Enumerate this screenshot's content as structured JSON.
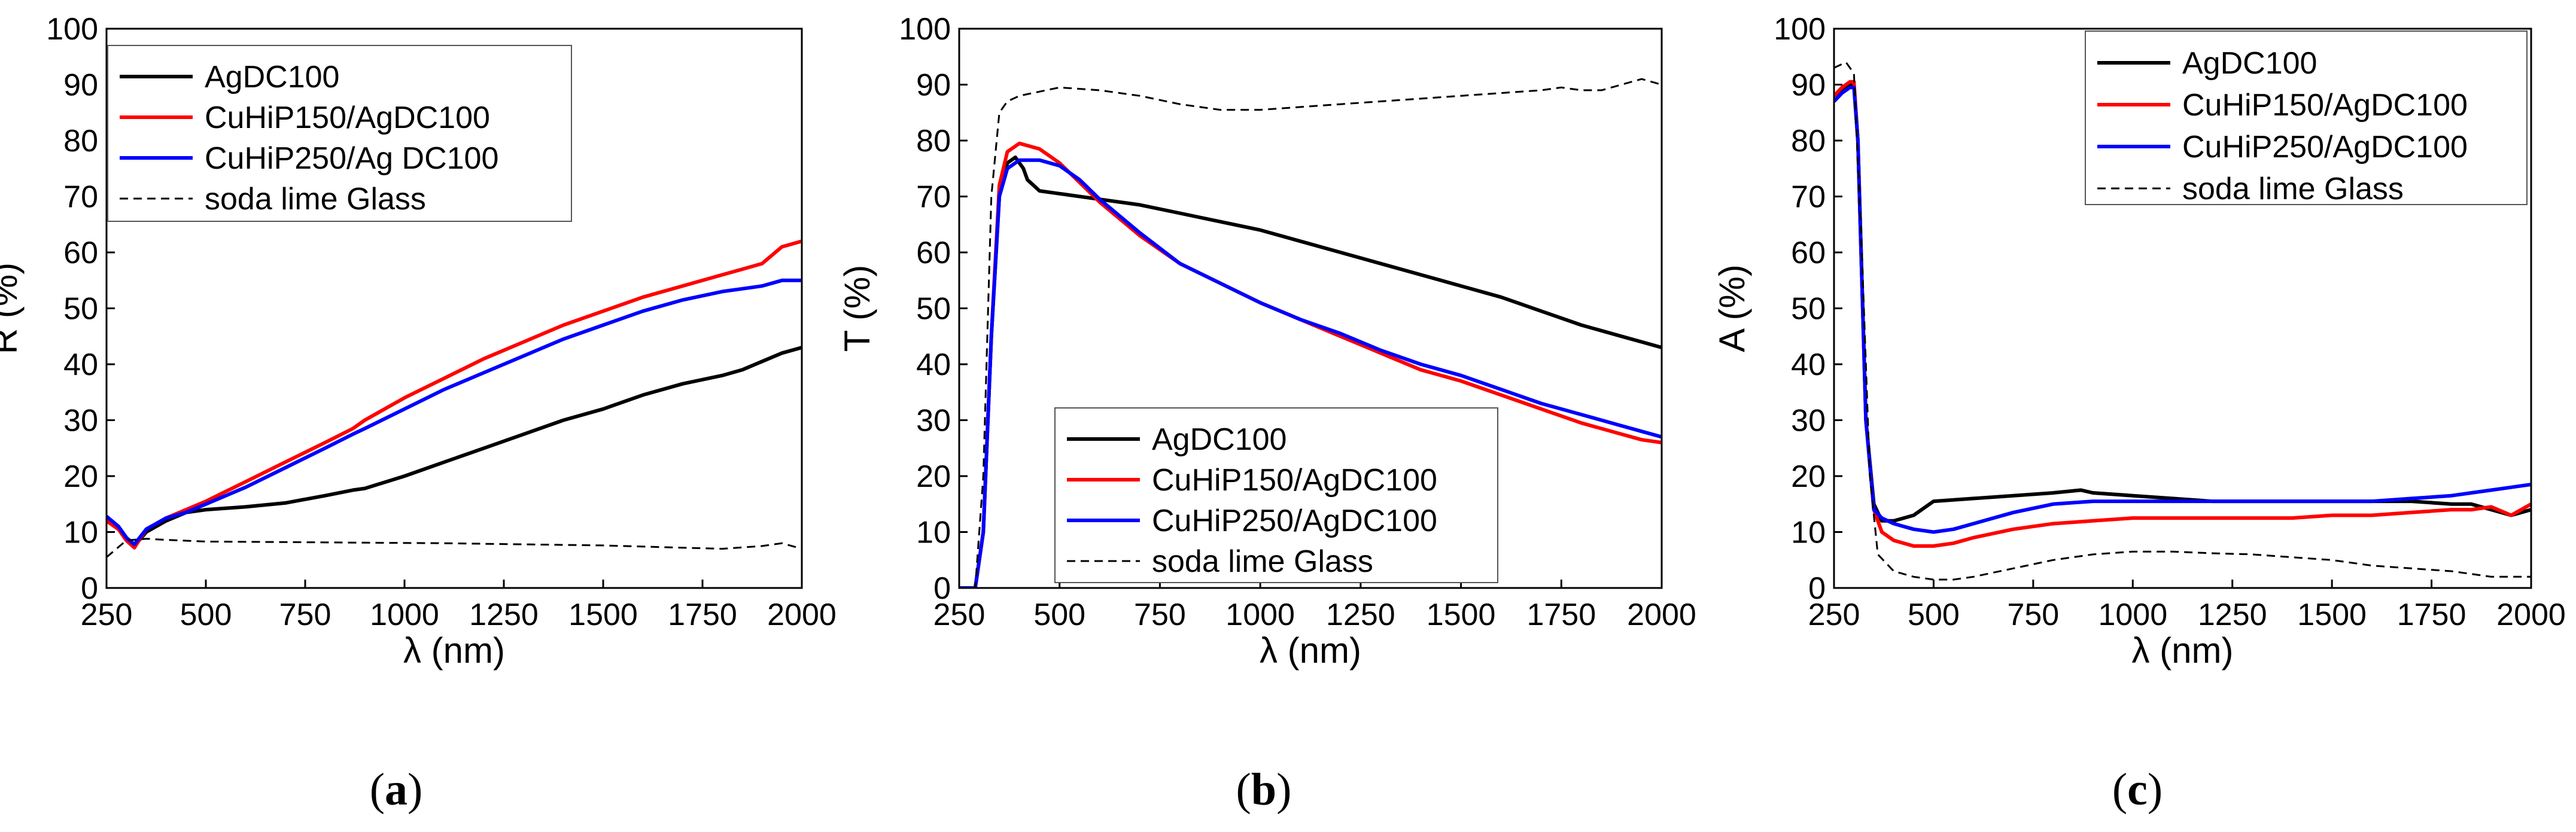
{
  "colors": {
    "black": "#000000",
    "red": "#ff0000",
    "blue": "#0000ff"
  },
  "x_ticks": [
    250,
    500,
    750,
    1000,
    1250,
    1500,
    1750,
    2000
  ],
  "y_ticks": [
    0,
    10,
    20,
    30,
    40,
    50,
    60,
    70,
    80,
    90,
    100
  ],
  "chart_data": [
    {
      "type": "line",
      "panel": "a",
      "caption": "(a)",
      "xlabel": "λ (nm)",
      "ylabel": "R (%)",
      "xlim": [
        250,
        2000
      ],
      "ylim": [
        0,
        100
      ],
      "legend_position": "top-left",
      "series": [
        {
          "name": "AgDC100",
          "color": "#000000",
          "dash": "solid",
          "x": [
            250,
            280,
            300,
            320,
            350,
            400,
            450,
            500,
            600,
            700,
            800,
            870,
            900,
            1000,
            1100,
            1200,
            1300,
            1400,
            1500,
            1600,
            1700,
            1800,
            1850,
            1900,
            1950,
            2000
          ],
          "y": [
            12.5,
            11,
            9,
            7.5,
            10,
            12,
            13.5,
            14,
            14.5,
            15.2,
            16.5,
            17.5,
            17.8,
            20,
            22.5,
            25,
            27.5,
            30,
            32,
            34.5,
            36.5,
            38,
            39,
            40.5,
            42,
            43
          ]
        },
        {
          "name": "CuHiP150/AgDC100",
          "color": "#ff0000",
          "dash": "solid",
          "x": [
            250,
            280,
            300,
            320,
            350,
            400,
            450,
            500,
            600,
            700,
            800,
            870,
            900,
            1000,
            1100,
            1200,
            1300,
            1400,
            1500,
            1600,
            1700,
            1800,
            1850,
            1900,
            1950,
            2000
          ],
          "y": [
            12,
            10.5,
            8.5,
            7.2,
            10.5,
            12.5,
            14,
            15.5,
            19,
            22.5,
            26,
            28.5,
            30,
            34,
            37.5,
            41,
            44,
            47,
            49.5,
            52,
            54,
            56,
            57,
            58,
            61,
            62
          ]
        },
        {
          "name": "CuHiP250/Ag DC100",
          "color": "#0000ff",
          "dash": "solid",
          "x": [
            250,
            280,
            300,
            320,
            350,
            400,
            450,
            500,
            600,
            700,
            800,
            870,
            900,
            1000,
            1100,
            1200,
            1300,
            1400,
            1500,
            1600,
            1700,
            1800,
            1850,
            1900,
            1950,
            2000
          ],
          "y": [
            12.8,
            11,
            9,
            7.8,
            10.5,
            12.5,
            13.5,
            15,
            18,
            21.5,
            25,
            27.5,
            28.5,
            32,
            35.5,
            38.5,
            41.5,
            44.5,
            47,
            49.5,
            51.5,
            53,
            53.5,
            54,
            55,
            55
          ]
        },
        {
          "name": "soda lime Glass",
          "color": "#000000",
          "dash": "dashed",
          "x": [
            250,
            300,
            350,
            400,
            500,
            700,
            900,
            1100,
            1300,
            1500,
            1700,
            1800,
            1900,
            1950,
            2000
          ],
          "y": [
            5.5,
            8.5,
            8.8,
            8.6,
            8.3,
            8.2,
            8.1,
            8,
            7.8,
            7.6,
            7.2,
            7,
            7.5,
            8,
            7
          ]
        }
      ]
    },
    {
      "type": "line",
      "panel": "b",
      "caption": "(b)",
      "xlabel": "λ (nm)",
      "ylabel": "T (%)",
      "xlim": [
        250,
        2000
      ],
      "ylim": [
        0,
        100
      ],
      "legend_position": "bottom-center",
      "series": [
        {
          "name": "AgDC100",
          "color": "#000000",
          "dash": "solid",
          "x": [
            250,
            290,
            310,
            330,
            350,
            370,
            390,
            410,
            420,
            450,
            500,
            600,
            700,
            800,
            900,
            1000,
            1100,
            1200,
            1300,
            1400,
            1500,
            1600,
            1700,
            1800,
            1900,
            1950,
            2000
          ],
          "y": [
            0,
            0,
            10,
            45,
            70,
            76,
            77,
            75,
            73,
            71,
            70.5,
            69.5,
            68.5,
            67,
            65.5,
            64,
            62,
            60,
            58,
            56,
            54,
            52,
            49.5,
            47,
            45,
            44,
            43
          ]
        },
        {
          "name": "CuHiP150/AgDC100",
          "color": "#ff0000",
          "dash": "solid",
          "x": [
            250,
            290,
            310,
            330,
            350,
            370,
            400,
            450,
            500,
            550,
            600,
            700,
            800,
            900,
            1000,
            1100,
            1200,
            1300,
            1400,
            1500,
            1600,
            1700,
            1800,
            1900,
            1950,
            2000
          ],
          "y": [
            0,
            0,
            10,
            45,
            72,
            78,
            79.5,
            78.5,
            76,
            72.5,
            69,
            63,
            58,
            54.5,
            51,
            48,
            45,
            42,
            39,
            37,
            34.5,
            32,
            29.5,
            27.5,
            26.5,
            26
          ]
        },
        {
          "name": "CuHiP250/AgDC100",
          "color": "#0000ff",
          "dash": "solid",
          "x": [
            250,
            290,
            310,
            330,
            350,
            370,
            400,
            450,
            500,
            550,
            600,
            700,
            800,
            900,
            1000,
            1100,
            1200,
            1300,
            1400,
            1500,
            1600,
            1700,
            1800,
            1900,
            1950,
            2000
          ],
          "y": [
            0,
            0,
            10,
            45,
            70,
            75,
            76.5,
            76.5,
            75.5,
            73,
            69.5,
            63.5,
            58,
            54.5,
            51,
            48,
            45.5,
            42.5,
            40,
            38,
            35.5,
            33,
            31,
            29,
            28,
            27
          ]
        },
        {
          "name": "soda lime Glass",
          "color": "#000000",
          "dash": "dashed",
          "x": [
            250,
            290,
            310,
            330,
            350,
            370,
            400,
            500,
            600,
            700,
            800,
            900,
            1000,
            1100,
            1200,
            1300,
            1400,
            1500,
            1600,
            1700,
            1750,
            1800,
            1850,
            1900,
            1950,
            2000
          ],
          "y": [
            0,
            0,
            20,
            70,
            85,
            87,
            88,
            89.5,
            89,
            88,
            86.5,
            85.5,
            85.5,
            86,
            86.5,
            87,
            87.5,
            88,
            88.5,
            89,
            89.5,
            89,
            89,
            90,
            91,
            90
          ]
        }
      ]
    },
    {
      "type": "line",
      "panel": "c",
      "caption": "(c)",
      "xlabel": "λ (nm)",
      "ylabel": "A (%)",
      "xlim": [
        250,
        2000
      ],
      "ylim": [
        0,
        100
      ],
      "legend_position": "top-right",
      "series": [
        {
          "name": "AgDC100",
          "color": "#000000",
          "dash": "solid",
          "x": [
            250,
            270,
            290,
            300,
            310,
            320,
            330,
            350,
            370,
            400,
            450,
            500,
            600,
            700,
            800,
            870,
            900,
            1000,
            1100,
            1200,
            1300,
            1400,
            1500,
            1600,
            1700,
            1800,
            1850,
            1900,
            1950,
            2000
          ],
          "y": [
            88,
            89,
            90,
            90,
            80,
            55,
            30,
            15,
            12,
            12,
            13,
            15.5,
            16,
            16.5,
            17,
            17.5,
            17,
            16.5,
            16,
            15.5,
            15.5,
            15.5,
            15.5,
            15.5,
            15.5,
            15,
            15,
            14,
            13,
            14
          ]
        },
        {
          "name": "CuHiP150/AgDC100",
          "color": "#ff0000",
          "dash": "solid",
          "x": [
            250,
            270,
            290,
            300,
            310,
            320,
            330,
            350,
            370,
            400,
            450,
            500,
            550,
            600,
            700,
            800,
            900,
            1000,
            1100,
            1200,
            1300,
            1400,
            1500,
            1600,
            1700,
            1800,
            1850,
            1900,
            1950,
            2000
          ],
          "y": [
            88,
            89.5,
            90.5,
            90.5,
            80,
            55,
            30,
            14,
            10,
            8.5,
            7.5,
            7.5,
            8,
            9,
            10.5,
            11.5,
            12,
            12.5,
            12.5,
            12.5,
            12.5,
            12.5,
            13,
            13,
            13.5,
            14,
            14,
            14.5,
            13,
            15
          ]
        },
        {
          "name": "CuHiP250/AgDC100",
          "color": "#0000ff",
          "dash": "solid",
          "x": [
            250,
            270,
            290,
            300,
            310,
            320,
            330,
            350,
            370,
            400,
            450,
            500,
            550,
            600,
            700,
            800,
            900,
            1000,
            1100,
            1200,
            1300,
            1400,
            1500,
            1600,
            1700,
            1800,
            1850,
            1900,
            1950,
            2000
          ],
          "y": [
            87,
            88.5,
            89.5,
            89.5,
            80,
            55,
            30,
            14,
            12.5,
            11.5,
            10.5,
            10,
            10.5,
            11.5,
            13.5,
            15,
            15.5,
            15.5,
            15.5,
            15.5,
            15.5,
            15.5,
            15.5,
            15.5,
            16,
            16.5,
            17,
            17.5,
            18,
            18.5
          ]
        },
        {
          "name": "soda lime Glass",
          "color": "#000000",
          "dash": "dashed",
          "x": [
            250,
            280,
            300,
            320,
            340,
            360,
            400,
            450,
            500,
            550,
            600,
            700,
            800,
            900,
            1000,
            1100,
            1200,
            1300,
            1400,
            1500,
            1600,
            1700,
            1800,
            1850,
            1900,
            1950,
            2000
          ],
          "y": [
            93,
            94,
            92,
            60,
            20,
            6,
            3,
            2,
            1.5,
            1.5,
            2,
            3.5,
            5,
            6,
            6.5,
            6.5,
            6.2,
            6,
            5.5,
            5,
            4,
            3.5,
            3,
            2.5,
            2,
            2,
            2
          ]
        }
      ]
    }
  ]
}
